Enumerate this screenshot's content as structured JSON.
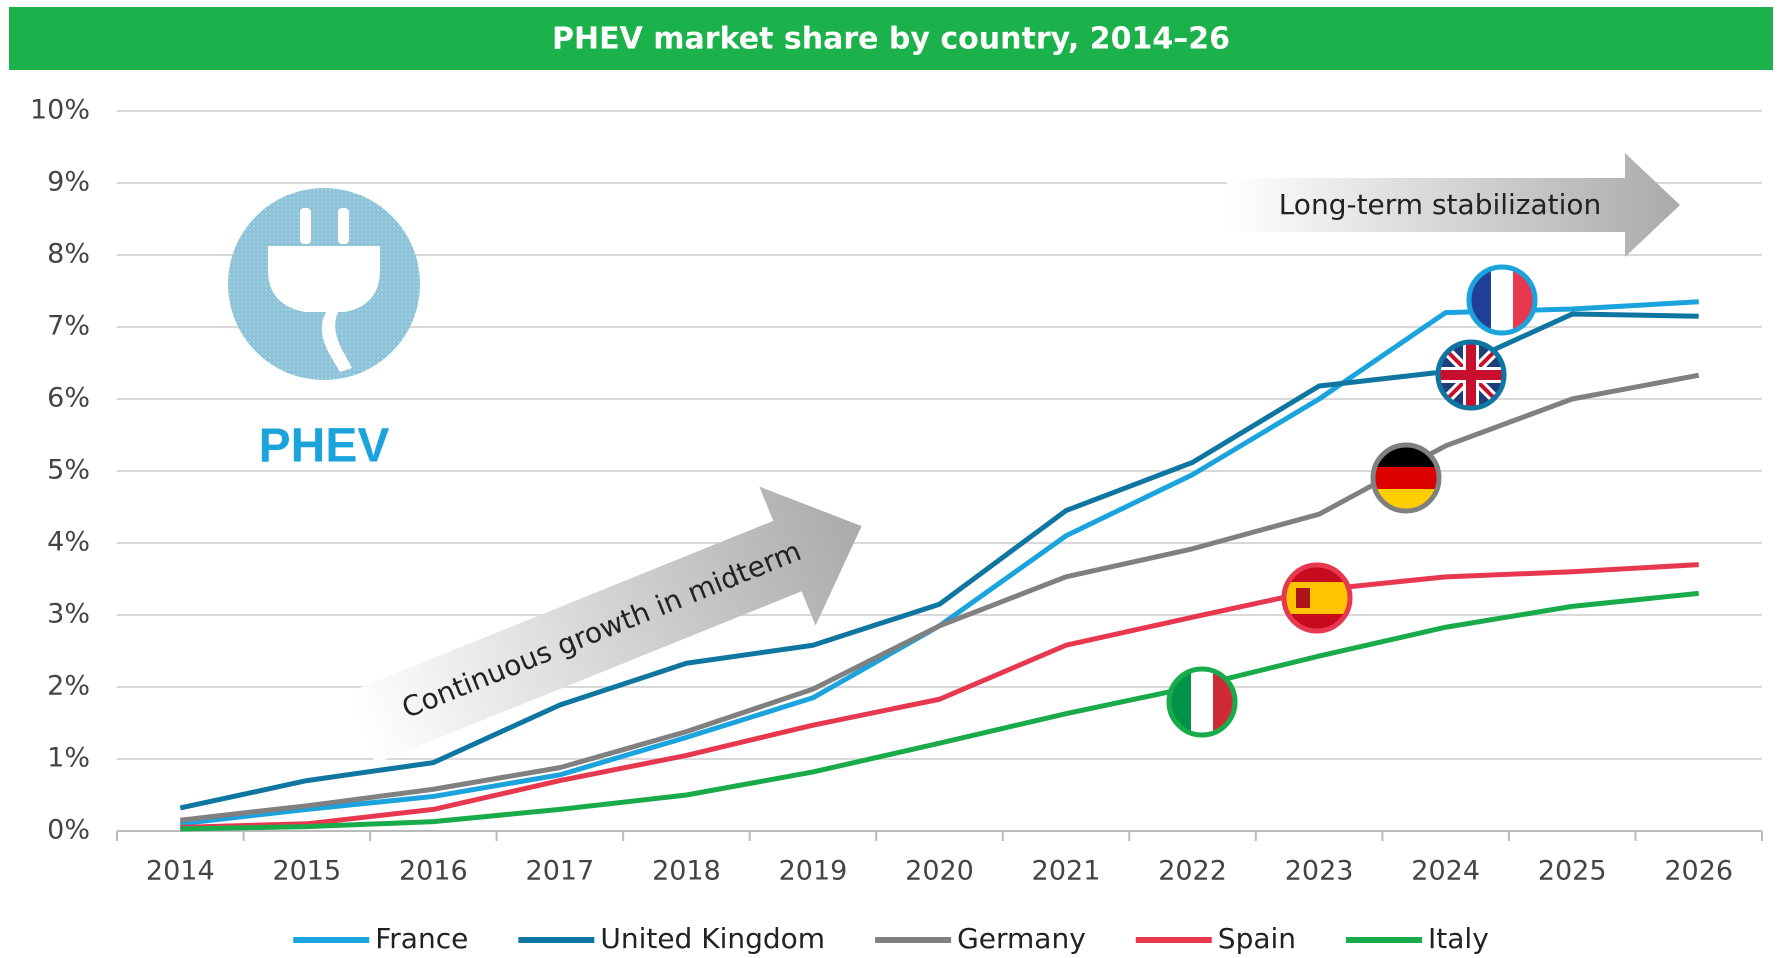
{
  "chart_data": {
    "type": "line",
    "title": "PHEV market share by country, 2014–26",
    "badge": "PHEV",
    "annotations": [
      "Continuous growth in midterm",
      "Long-term stabilization"
    ],
    "categories": [
      "2014",
      "2015",
      "2016",
      "2017",
      "2018",
      "2019",
      "2020",
      "2021",
      "2022",
      "2023",
      "2024",
      "2025",
      "2026"
    ],
    "series": [
      {
        "name": "France",
        "color": "#1aa3dc",
        "values": [
          0.1,
          0.3,
          0.48,
          0.78,
          1.3,
          1.85,
          2.85,
          4.1,
          4.95,
          6.0,
          7.2,
          7.25,
          7.35
        ]
      },
      {
        "name": "United Kingdom",
        "color": "#0e76a0",
        "values": [
          0.32,
          0.7,
          0.95,
          1.75,
          2.33,
          2.58,
          3.15,
          4.45,
          5.12,
          6.18,
          6.38,
          7.18,
          7.15
        ]
      },
      {
        "name": "Germany",
        "color": "#808080",
        "values": [
          0.15,
          0.35,
          0.58,
          0.88,
          1.38,
          1.97,
          2.85,
          3.53,
          3.92,
          4.4,
          5.35,
          6.0,
          6.33
        ]
      },
      {
        "name": "Spain",
        "color": "#e8384f",
        "values": [
          0.05,
          0.1,
          0.3,
          0.7,
          1.05,
          1.47,
          1.83,
          2.58,
          2.97,
          3.35,
          3.53,
          3.6,
          3.7
        ]
      },
      {
        "name": "Italy",
        "color": "#19ab4a",
        "values": [
          0.03,
          0.06,
          0.13,
          0.3,
          0.5,
          0.82,
          1.22,
          1.63,
          2.0,
          2.43,
          2.83,
          3.12,
          3.3
        ]
      }
    ],
    "ylim": [
      0,
      10
    ],
    "yticks": [
      {
        "value": 0,
        "label": "0%"
      },
      {
        "value": 1,
        "label": "1%"
      },
      {
        "value": 2,
        "label": "2%"
      },
      {
        "value": 3,
        "label": "3%"
      },
      {
        "value": 4,
        "label": "4%"
      },
      {
        "value": 5,
        "label": "5%"
      },
      {
        "value": 6,
        "label": "6%"
      },
      {
        "value": 7,
        "label": "7%"
      },
      {
        "value": 8,
        "label": "8%"
      },
      {
        "value": 9,
        "label": "9%"
      },
      {
        "value": 10,
        "label": "10%"
      }
    ],
    "grid": true,
    "legend": "bottom"
  }
}
